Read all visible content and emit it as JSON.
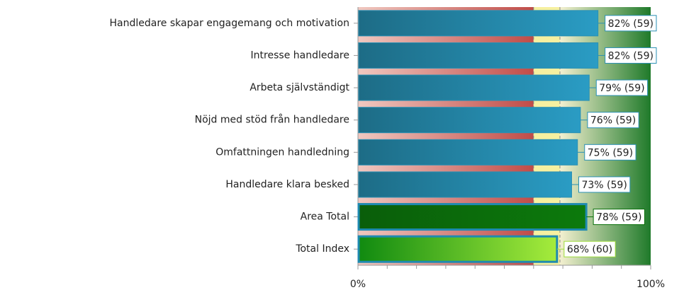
{
  "chart_data": {
    "type": "hbar",
    "categories": [
      "Handledare skapar engagemang och motivation",
      "Intresse handledare",
      "Arbeta självständigt",
      "Nöjd med stöd från handledare",
      "Omfattningen handledning",
      "Handledare klara besked",
      "Area Total",
      "Total Index"
    ],
    "values": [
      82,
      82,
      79,
      76,
      75,
      73,
      78,
      68
    ],
    "value_labels": [
      "82% (59)",
      "82% (59)",
      "79% (59)",
      "76% (59)",
      "75% (59)",
      "73% (59)",
      "78% (59)",
      "68% (60)"
    ],
    "colors": [
      "#1f7a96",
      "#1f7a96",
      "#1f7a96",
      "#1f7a96",
      "#1f7a96",
      "#1f7a96",
      "#0a6a0a",
      "#5cc01c"
    ],
    "label_colors": [
      "#2a90b4",
      "#2a90b4",
      "#2a90b4",
      "#2a90b4",
      "#2a90b4",
      "#2a90b4",
      "#0b700b",
      "#9edc3a"
    ],
    "xlim": [
      0,
      100
    ],
    "xticks": [
      {
        "value": 0,
        "label": "0%"
      },
      {
        "value": 100,
        "label": "100%"
      }
    ],
    "minor_xticks": [
      10,
      20,
      30,
      40,
      50,
      60,
      70,
      80,
      90
    ],
    "zones": [
      {
        "from": 0,
        "to": 60,
        "color": "#c9605a"
      },
      {
        "from": 60,
        "to": 69,
        "color": "#f6f0a0"
      },
      {
        "from": 69,
        "to": 100,
        "color": "#2e8a2e"
      }
    ]
  }
}
